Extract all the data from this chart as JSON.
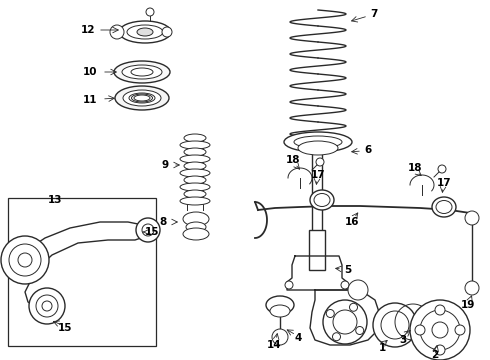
{
  "bg_color": "#ffffff",
  "line_color": "#2a2a2a",
  "label_color": "#000000",
  "figsize": [
    4.9,
    3.6
  ],
  "dpi": 100
}
